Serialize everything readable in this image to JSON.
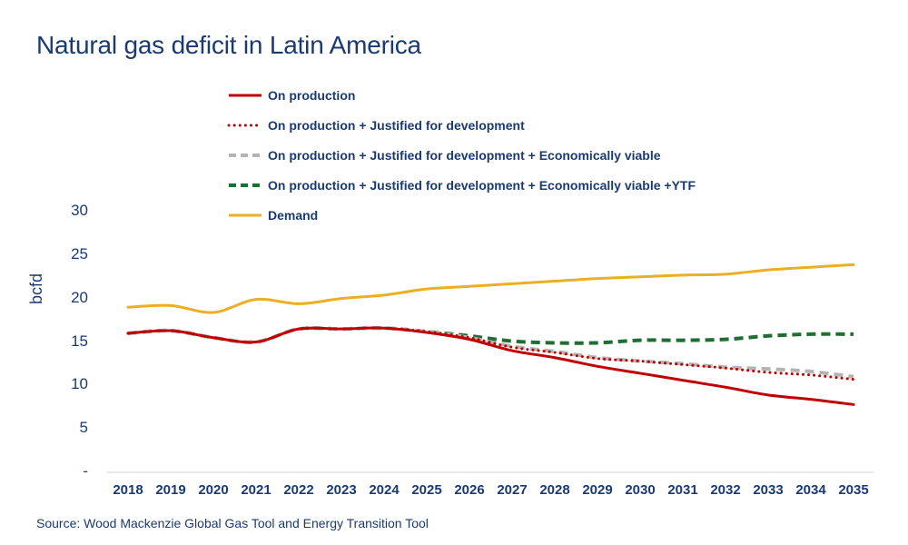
{
  "title": "Natural gas deficit in Latin America",
  "source": "Source: Wood Mackenzie Global Gas Tool and Energy Transition Tool",
  "chart_data": {
    "type": "line",
    "title": "Natural gas deficit in Latin America",
    "ylabel": "bcfd",
    "xlabel": "",
    "ylim": [
      0,
      30
    ],
    "y_ticks": [
      {
        "value": 30,
        "label": "30"
      },
      {
        "value": 25,
        "label": "25"
      },
      {
        "value": 20,
        "label": "20"
      },
      {
        "value": 15,
        "label": "15"
      },
      {
        "value": 10,
        "label": "10"
      },
      {
        "value": 5,
        "label": "5"
      },
      {
        "value": 0,
        "label": "-"
      }
    ],
    "x": [
      "2018",
      "2019",
      "2020",
      "2021",
      "2022",
      "2023",
      "2024",
      "2025",
      "2026",
      "2027",
      "2028",
      "2029",
      "2030",
      "2031",
      "2032",
      "2033",
      "2034",
      "2035"
    ],
    "legend_position": "top",
    "grid": false,
    "series": [
      {
        "name": "On production",
        "color": "#c00000",
        "style": "solid",
        "values": [
          16.0,
          16.3,
          15.5,
          15.0,
          16.5,
          16.5,
          16.6,
          16.1,
          15.3,
          14.0,
          13.2,
          12.2,
          11.4,
          10.6,
          9.8,
          8.9,
          8.4,
          7.8
        ]
      },
      {
        "name": "On production + Justified for development",
        "color": "#c00000",
        "style": "dotted",
        "values": [
          16.0,
          16.3,
          15.5,
          15.0,
          16.5,
          16.5,
          16.6,
          16.2,
          15.5,
          14.4,
          13.8,
          13.1,
          12.8,
          12.4,
          12.0,
          11.5,
          11.2,
          10.7
        ]
      },
      {
        "name": "On production + Justified for development + Economically viable",
        "color": "#b4b4b4",
        "style": "dashed",
        "values": [
          16.0,
          16.3,
          15.5,
          15.0,
          16.5,
          16.5,
          16.6,
          16.2,
          15.5,
          14.5,
          13.9,
          13.2,
          12.8,
          12.5,
          12.1,
          11.9,
          11.6,
          11.0
        ]
      },
      {
        "name": "On production + Justified for development + Economically viable +YTF",
        "color": "#1e6e32",
        "style": "dashed",
        "values": [
          16.0,
          16.3,
          15.5,
          15.0,
          16.5,
          16.5,
          16.6,
          16.2,
          15.7,
          15.1,
          14.9,
          14.9,
          15.2,
          15.2,
          15.3,
          15.7,
          15.9,
          15.9
        ]
      },
      {
        "name": "Demand",
        "color": "#ecae22",
        "style": "solid",
        "values": [
          19.0,
          19.2,
          18.4,
          19.9,
          19.4,
          20.0,
          20.4,
          21.1,
          21.4,
          21.7,
          22.0,
          22.3,
          22.5,
          22.7,
          22.8,
          23.3,
          23.6,
          23.9
        ]
      }
    ]
  }
}
